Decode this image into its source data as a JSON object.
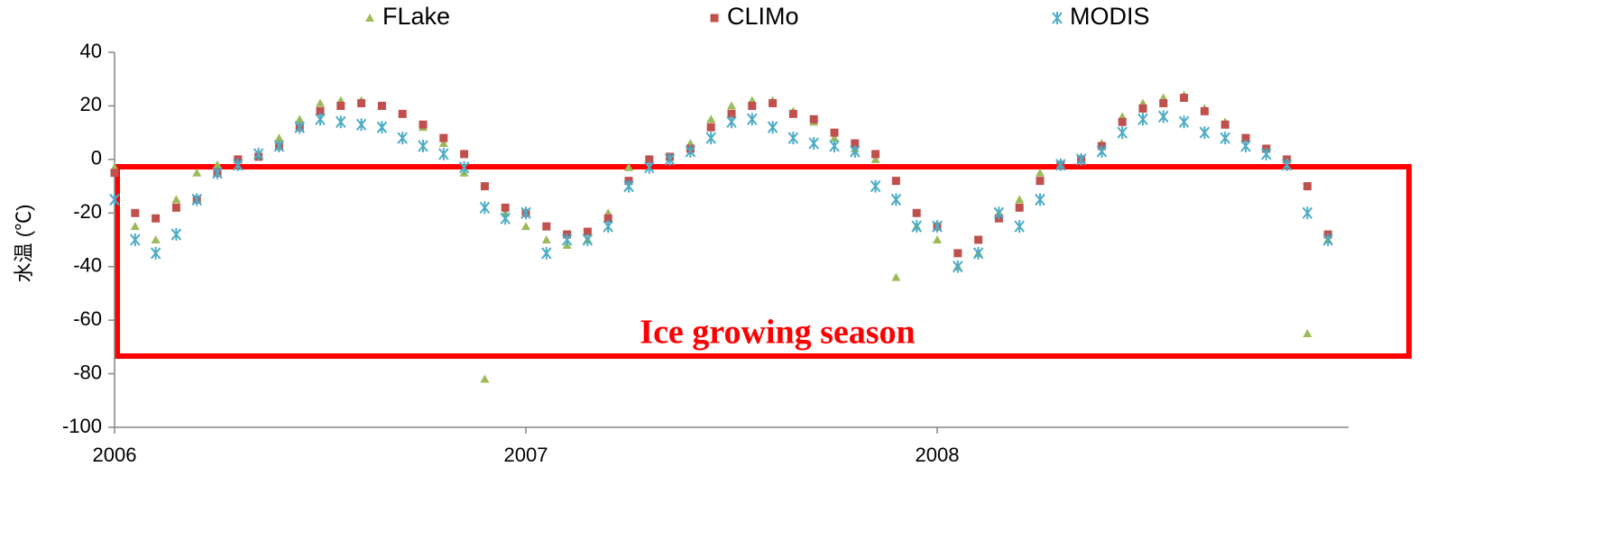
{
  "chart_data": {
    "type": "scatter",
    "y_label": "水温 (℃)",
    "annotation": "Ice growing season",
    "x": [
      2006,
      2006.05,
      2006.1,
      2006.15,
      2006.2,
      2006.25,
      2006.3,
      2006.35,
      2006.4,
      2006.45,
      2006.5,
      2006.55,
      2006.6,
      2006.65,
      2006.7,
      2006.75,
      2006.8,
      2006.85,
      2006.9,
      2006.95,
      2007,
      2007.05,
      2007.1,
      2007.15,
      2007.2,
      2007.25,
      2007.3,
      2007.35,
      2007.4,
      2007.45,
      2007.5,
      2007.55,
      2007.6,
      2007.65,
      2007.7,
      2007.75,
      2007.8,
      2007.85,
      2007.9,
      2007.95,
      2008,
      2008.05,
      2008.1,
      2008.15,
      2008.2,
      2008.25,
      2008.3,
      2008.35,
      2008.4,
      2008.45,
      2008.5,
      2008.55,
      2008.6,
      2008.65,
      2008.7,
      2008.75,
      2008.8,
      2008.85,
      2008.9,
      2008.95
    ],
    "series": [
      {
        "name": "FLake",
        "color": "#9bbb59",
        "marker": "triangle",
        "values": [
          -3,
          -25,
          -30,
          -15,
          -5,
          -2,
          0,
          2,
          8,
          15,
          21,
          22,
          22,
          20,
          17,
          12,
          6,
          -5,
          -82,
          -20,
          -25,
          -30,
          -32,
          -30,
          -20,
          -3,
          0,
          1,
          6,
          15,
          20,
          22,
          22,
          18,
          14,
          8,
          4,
          0,
          -44,
          -25,
          -30,
          -40,
          -35,
          -20,
          -15,
          -5,
          -2,
          0,
          6,
          16,
          21,
          23,
          24,
          19,
          14,
          8,
          4,
          0,
          -65,
          -30
        ]
      },
      {
        "name": "CLIMo",
        "color": "#c0504d",
        "marker": "square",
        "values": [
          -5,
          -20,
          -22,
          -18,
          -15,
          -5,
          0,
          1,
          5,
          12,
          18,
          20,
          21,
          20,
          17,
          13,
          8,
          2,
          -10,
          -18,
          -20,
          -25,
          -28,
          -27,
          -22,
          -8,
          0,
          1,
          4,
          12,
          17,
          20,
          21,
          17,
          15,
          10,
          6,
          2,
          -8,
          -20,
          -25,
          -35,
          -30,
          -22,
          -18,
          -8,
          -2,
          0,
          5,
          14,
          19,
          21,
          23,
          18,
          13,
          8,
          4,
          0,
          -10,
          -28
        ]
      },
      {
        "name": "MODIS",
        "color": "#4bacc6",
        "marker": "x",
        "values": [
          -15,
          -30,
          -35,
          -28,
          -15,
          -5,
          -2,
          2,
          5,
          12,
          15,
          14,
          13,
          12,
          8,
          5,
          2,
          -3,
          -18,
          -22,
          -20,
          -35,
          -30,
          -30,
          -25,
          -10,
          -3,
          0,
          3,
          8,
          14,
          15,
          12,
          8,
          6,
          5,
          3,
          -10,
          -15,
          -25,
          -25,
          -40,
          -35,
          -20,
          -25,
          -15,
          -2,
          0,
          3,
          10,
          15,
          16,
          14,
          10,
          8,
          5,
          2,
          -2,
          -20,
          -30
        ]
      }
    ],
    "xlim": [
      2006,
      2009
    ],
    "xticks": [
      2006,
      2007,
      2008
    ],
    "ylim": [
      -100,
      40
    ],
    "yticks": [
      -100,
      -80,
      -60,
      -40,
      -20,
      0,
      20,
      40
    ],
    "grid": false
  }
}
